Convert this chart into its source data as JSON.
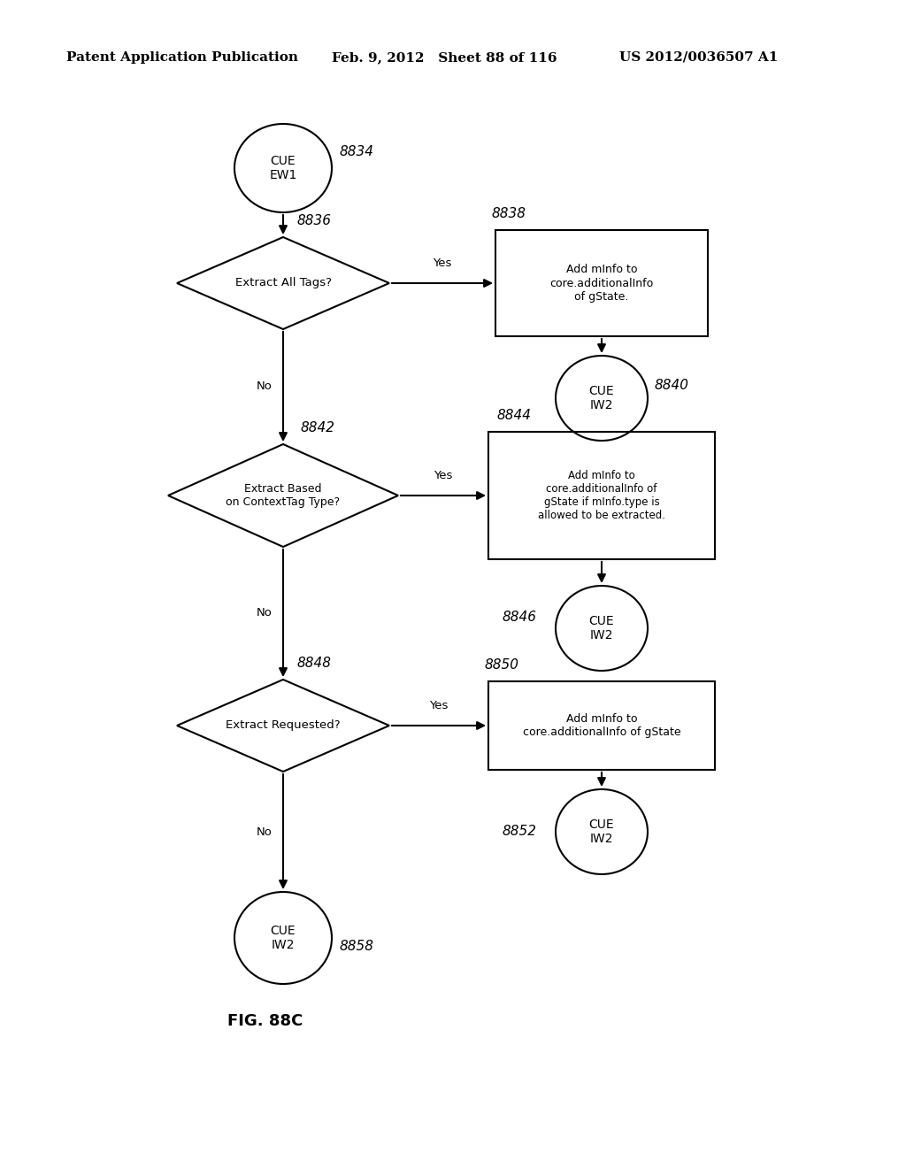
{
  "header_left": "Patent Application Publication",
  "header_mid": "Feb. 9, 2012   Sheet 88 of 116",
  "header_right": "US 2012/0036507 A1",
  "fig_label": "FIG. 88C",
  "bg_color": "#ffffff"
}
